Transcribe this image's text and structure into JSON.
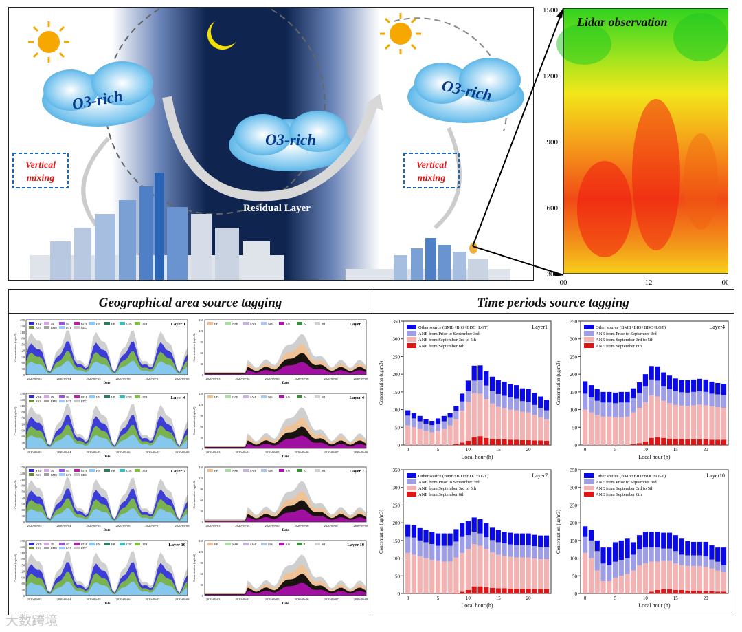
{
  "schematic": {
    "cloud_text": "O3-rich",
    "vertical_mixing": "Vertical mixing",
    "residual_layer": "Residual Layer"
  },
  "lidar": {
    "title": "Lidar observation",
    "y_ticks": [
      "1500",
      "1200",
      "900",
      "600",
      "300"
    ],
    "x_ticks": [
      "00",
      "12",
      "00"
    ]
  },
  "left_panel": {
    "title": "Geographical area source tagging",
    "row_layers": [
      "Layer 1",
      "Layer 4",
      "Layer 7",
      "Layer 10"
    ],
    "region_legend": [
      "YRD",
      "JX",
      "SD",
      "BTH",
      "HN",
      "HB",
      "OTC",
      "OTH",
      "BIO",
      "BMB",
      "LGT",
      "BDC"
    ],
    "sector_legend": [
      "HF",
      "NAH",
      "SAH",
      "NJS",
      "SJS",
      "ZJ",
      "SH"
    ],
    "dates": [
      "2020-09-03",
      "2020-09-04",
      "2020-09-05",
      "2020-09-06",
      "2020-09-07",
      "2020-09-08"
    ],
    "y_label": "Concentration (ug/m3)",
    "x_label": "Date",
    "y_ticks_region": [
      "270",
      "240",
      "210",
      "180",
      "150",
      "120",
      "90",
      "60",
      "30",
      "0"
    ],
    "y_ticks_sector": [
      "150",
      "120",
      "90",
      "60",
      "30",
      "0"
    ]
  },
  "right_panel": {
    "title": "Time periods source tagging",
    "y_label": "Concentration (ug/m3)",
    "x_label": "Local hour (h)",
    "y_ticks": [
      "350",
      "300",
      "250",
      "200",
      "150",
      "100",
      "50",
      "0"
    ],
    "x_ticks": [
      "0",
      "5",
      "10",
      "15",
      "20"
    ],
    "legend": [
      "Other source (BMB+BIO+BDC+LGT)",
      "ANE from Prior to September 3rd",
      "ANE from September 3rd to 5th",
      "ANE from September 6th"
    ],
    "colors": [
      "#0a0ae6",
      "#9e9ee6",
      "#f4b3b3",
      "#e01515"
    ]
  },
  "watermark": "大数跨境",
  "chart_data": [
    {
      "type": "bar",
      "title": "Layer1",
      "categories": [
        0,
        1,
        2,
        3,
        4,
        5,
        6,
        7,
        8,
        9,
        10,
        11,
        12,
        13,
        14,
        15,
        16,
        17,
        18,
        19,
        20,
        21,
        22,
        23
      ],
      "series": [
        {
          "name": "ANE from September 6th",
          "values": [
            0,
            0,
            0,
            0,
            0,
            0,
            0,
            0,
            3,
            7,
            12,
            22,
            25,
            20,
            17,
            16,
            16,
            15,
            15,
            14,
            14,
            13,
            13,
            12
          ]
        },
        {
          "name": "ANE from September 3rd to 5th",
          "values": [
            55,
            50,
            45,
            40,
            36,
            40,
            45,
            55,
            70,
            90,
            110,
            125,
            120,
            110,
            100,
            92,
            88,
            85,
            83,
            80,
            78,
            72,
            65,
            60
          ]
        },
        {
          "name": "ANE from Prior to September 3rd",
          "values": [
            28,
            25,
            22,
            20,
            20,
            20,
            22,
            22,
            24,
            26,
            30,
            35,
            38,
            38,
            36,
            36,
            35,
            34,
            33,
            30,
            30,
            28,
            27,
            26
          ]
        },
        {
          "name": "Other source (BMB+BIO+BDC+LGT)",
          "values": [
            15,
            15,
            15,
            12,
            12,
            15,
            15,
            13,
            13,
            22,
            30,
            42,
            42,
            40,
            40,
            40,
            40,
            38,
            38,
            36,
            36,
            34,
            32,
            30
          ]
        }
      ],
      "ylim": [
        0,
        350
      ],
      "xlabel": "Local hour (h)",
      "ylabel": "Concentration (ug/m3)"
    },
    {
      "type": "bar",
      "title": "Layer4",
      "categories": [
        0,
        1,
        2,
        3,
        4,
        5,
        6,
        7,
        8,
        9,
        10,
        11,
        12,
        13,
        14,
        15,
        16,
        17,
        18,
        19,
        20,
        21,
        22,
        23
      ],
      "series": [
        {
          "name": "ANE from September 6th",
          "values": [
            0,
            0,
            0,
            0,
            0,
            0,
            0,
            0,
            2,
            5,
            10,
            20,
            22,
            20,
            18,
            17,
            17,
            16,
            16,
            16,
            16,
            15,
            15,
            15
          ]
        },
        {
          "name": "ANE from September 3rd to 5th",
          "values": [
            100,
            92,
            85,
            80,
            80,
            78,
            78,
            80,
            90,
            100,
            110,
            120,
            115,
            105,
            100,
            96,
            94,
            94,
            96,
            98,
            96,
            94,
            92,
            90
          ]
        },
        {
          "name": "ANE from Prior to September 3rd",
          "values": [
            45,
            42,
            40,
            40,
            40,
            40,
            42,
            40,
            40,
            42,
            45,
            45,
            45,
            40,
            40,
            40,
            38,
            38,
            38,
            38,
            38,
            36,
            36,
            36
          ]
        },
        {
          "name": "Other source (BMB+BIO+BDC+LGT)",
          "values": [
            35,
            35,
            33,
            30,
            30,
            30,
            30,
            30,
            28,
            30,
            35,
            38,
            40,
            40,
            38,
            35,
            35,
            35,
            35,
            35,
            35,
            34,
            32,
            32
          ]
        }
      ],
      "ylim": [
        0,
        350
      ],
      "xlabel": "Local hour (h)",
      "ylabel": "Concentration (ug/m3)"
    },
    {
      "type": "bar",
      "title": "Layer7",
      "categories": [
        0,
        1,
        2,
        3,
        4,
        5,
        6,
        7,
        8,
        9,
        10,
        11,
        12,
        13,
        14,
        15,
        16,
        17,
        18,
        19,
        20,
        21,
        22,
        23
      ],
      "series": [
        {
          "name": "ANE from September 6th",
          "values": [
            0,
            0,
            0,
            0,
            0,
            0,
            0,
            0,
            2,
            5,
            10,
            20,
            20,
            18,
            16,
            15,
            15,
            14,
            14,
            14,
            14,
            13,
            13,
            13
          ]
        },
        {
          "name": "ANE from September 3rd to 5th",
          "values": [
            115,
            110,
            105,
            100,
            95,
            92,
            90,
            90,
            100,
            110,
            115,
            120,
            115,
            108,
            100,
            95,
            92,
            90,
            88,
            88,
            88,
            86,
            84,
            84
          ]
        },
        {
          "name": "ANE from Prior to September 3rd",
          "values": [
            45,
            48,
            45,
            45,
            45,
            43,
            45,
            45,
            45,
            45,
            40,
            35,
            35,
            33,
            35,
            35,
            35,
            35,
            35,
            35,
            35,
            35,
            35,
            35
          ]
        },
        {
          "name": "Other source (BMB+BIO+BDC+LGT)",
          "values": [
            35,
            35,
            35,
            35,
            35,
            35,
            35,
            35,
            35,
            40,
            40,
            40,
            40,
            40,
            35,
            35,
            33,
            33,
            33,
            33,
            33,
            32,
            32,
            32
          ]
        }
      ],
      "ylim": [
        0,
        350
      ],
      "xlabel": "Local hour (h)",
      "ylabel": "Concentration (ug/m3)"
    },
    {
      "type": "bar",
      "title": "Layer10",
      "categories": [
        0,
        1,
        2,
        3,
        4,
        5,
        6,
        7,
        8,
        9,
        10,
        11,
        12,
        13,
        14,
        15,
        16,
        17,
        18,
        19,
        20,
        21,
        22,
        23
      ],
      "series": [
        {
          "name": "ANE from September 6th",
          "values": [
            0,
            0,
            0,
            0,
            0,
            0,
            0,
            0,
            0,
            0,
            0,
            5,
            10,
            12,
            12,
            10,
            10,
            8,
            8,
            8,
            6,
            6,
            5,
            5
          ]
        },
        {
          "name": "ANE from September 3rd to 5th",
          "values": [
            115,
            100,
            65,
            35,
            35,
            45,
            50,
            55,
            65,
            80,
            85,
            85,
            80,
            80,
            80,
            75,
            70,
            70,
            70,
            70,
            70,
            65,
            60,
            55
          ]
        },
        {
          "name": "ANE from Prior to September 3rd",
          "values": [
            45,
            50,
            55,
            50,
            45,
            45,
            45,
            45,
            45,
            45,
            45,
            40,
            40,
            35,
            35,
            35,
            30,
            30,
            30,
            30,
            30,
            25,
            25,
            20
          ]
        },
        {
          "name": "Other source (BMB+BIO+BDC+LGT)",
          "values": [
            30,
            30,
            30,
            45,
            50,
            55,
            55,
            55,
            35,
            40,
            45,
            45,
            45,
            45,
            45,
            45,
            45,
            40,
            38,
            38,
            40,
            40,
            40,
            50
          ]
        }
      ],
      "ylim": [
        0,
        350
      ],
      "xlabel": "Local hour (h)",
      "ylabel": "Concentration (ug/m3)"
    }
  ]
}
